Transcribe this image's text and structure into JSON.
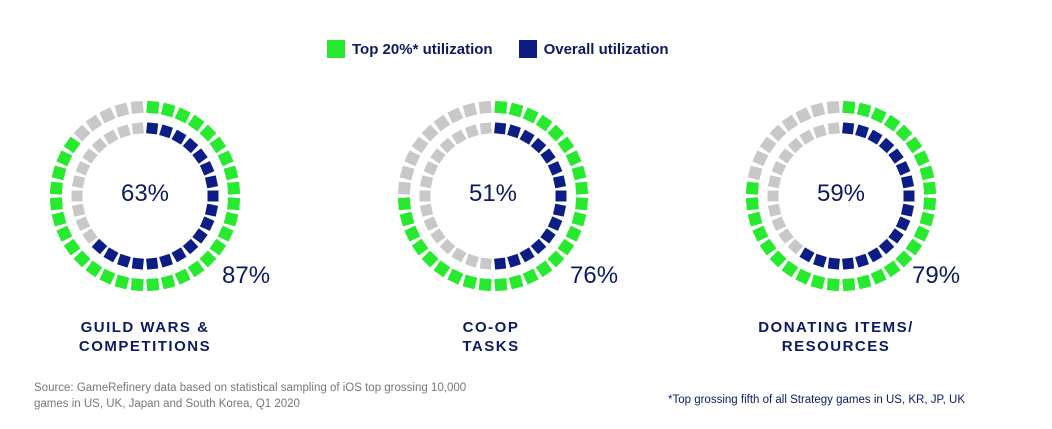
{
  "legend": {
    "top_label": "Top 20%* utilization",
    "overall_label": "Overall utilization"
  },
  "colors": {
    "top": "#27ea2f",
    "overall": "#0c1e86",
    "empty": "#c8c8c8",
    "text": "#0d1a63"
  },
  "chart_data": [
    {
      "type": "pie",
      "title": "GUILD WARS & COMPETITIONS",
      "title_lines": [
        "GUILD WARS &",
        "COMPETITIONS"
      ],
      "series": [
        {
          "name": "Top 20%* utilization",
          "value": 87,
          "label": "87%"
        },
        {
          "name": "Overall utilization",
          "value": 63,
          "label": "63%"
        }
      ]
    },
    {
      "type": "pie",
      "title": "CO-OP TASKS",
      "title_lines": [
        "CO-OP",
        "TASKS"
      ],
      "series": [
        {
          "name": "Top 20%* utilization",
          "value": 76,
          "label": "76%"
        },
        {
          "name": "Overall utilization",
          "value": 51,
          "label": "51%"
        }
      ]
    },
    {
      "type": "pie",
      "title": "DONATING ITEMS/ RESOURCES",
      "title_lines": [
        "DONATING ITEMS/",
        "RESOURCES"
      ],
      "series": [
        {
          "name": "Top 20%* utilization",
          "value": 79,
          "label": "79%"
        },
        {
          "name": "Overall utilization",
          "value": 59,
          "label": "59%"
        }
      ]
    }
  ],
  "source": {
    "line1": "Source: GameRefinery data based on statistical sampling of iOS top grossing 10,000",
    "line2": "games in US, UK, Japan and South Korea, Q1 2020"
  },
  "footnote": "*Top grossing fifth of all Strategy games in US, KR, JP, UK"
}
